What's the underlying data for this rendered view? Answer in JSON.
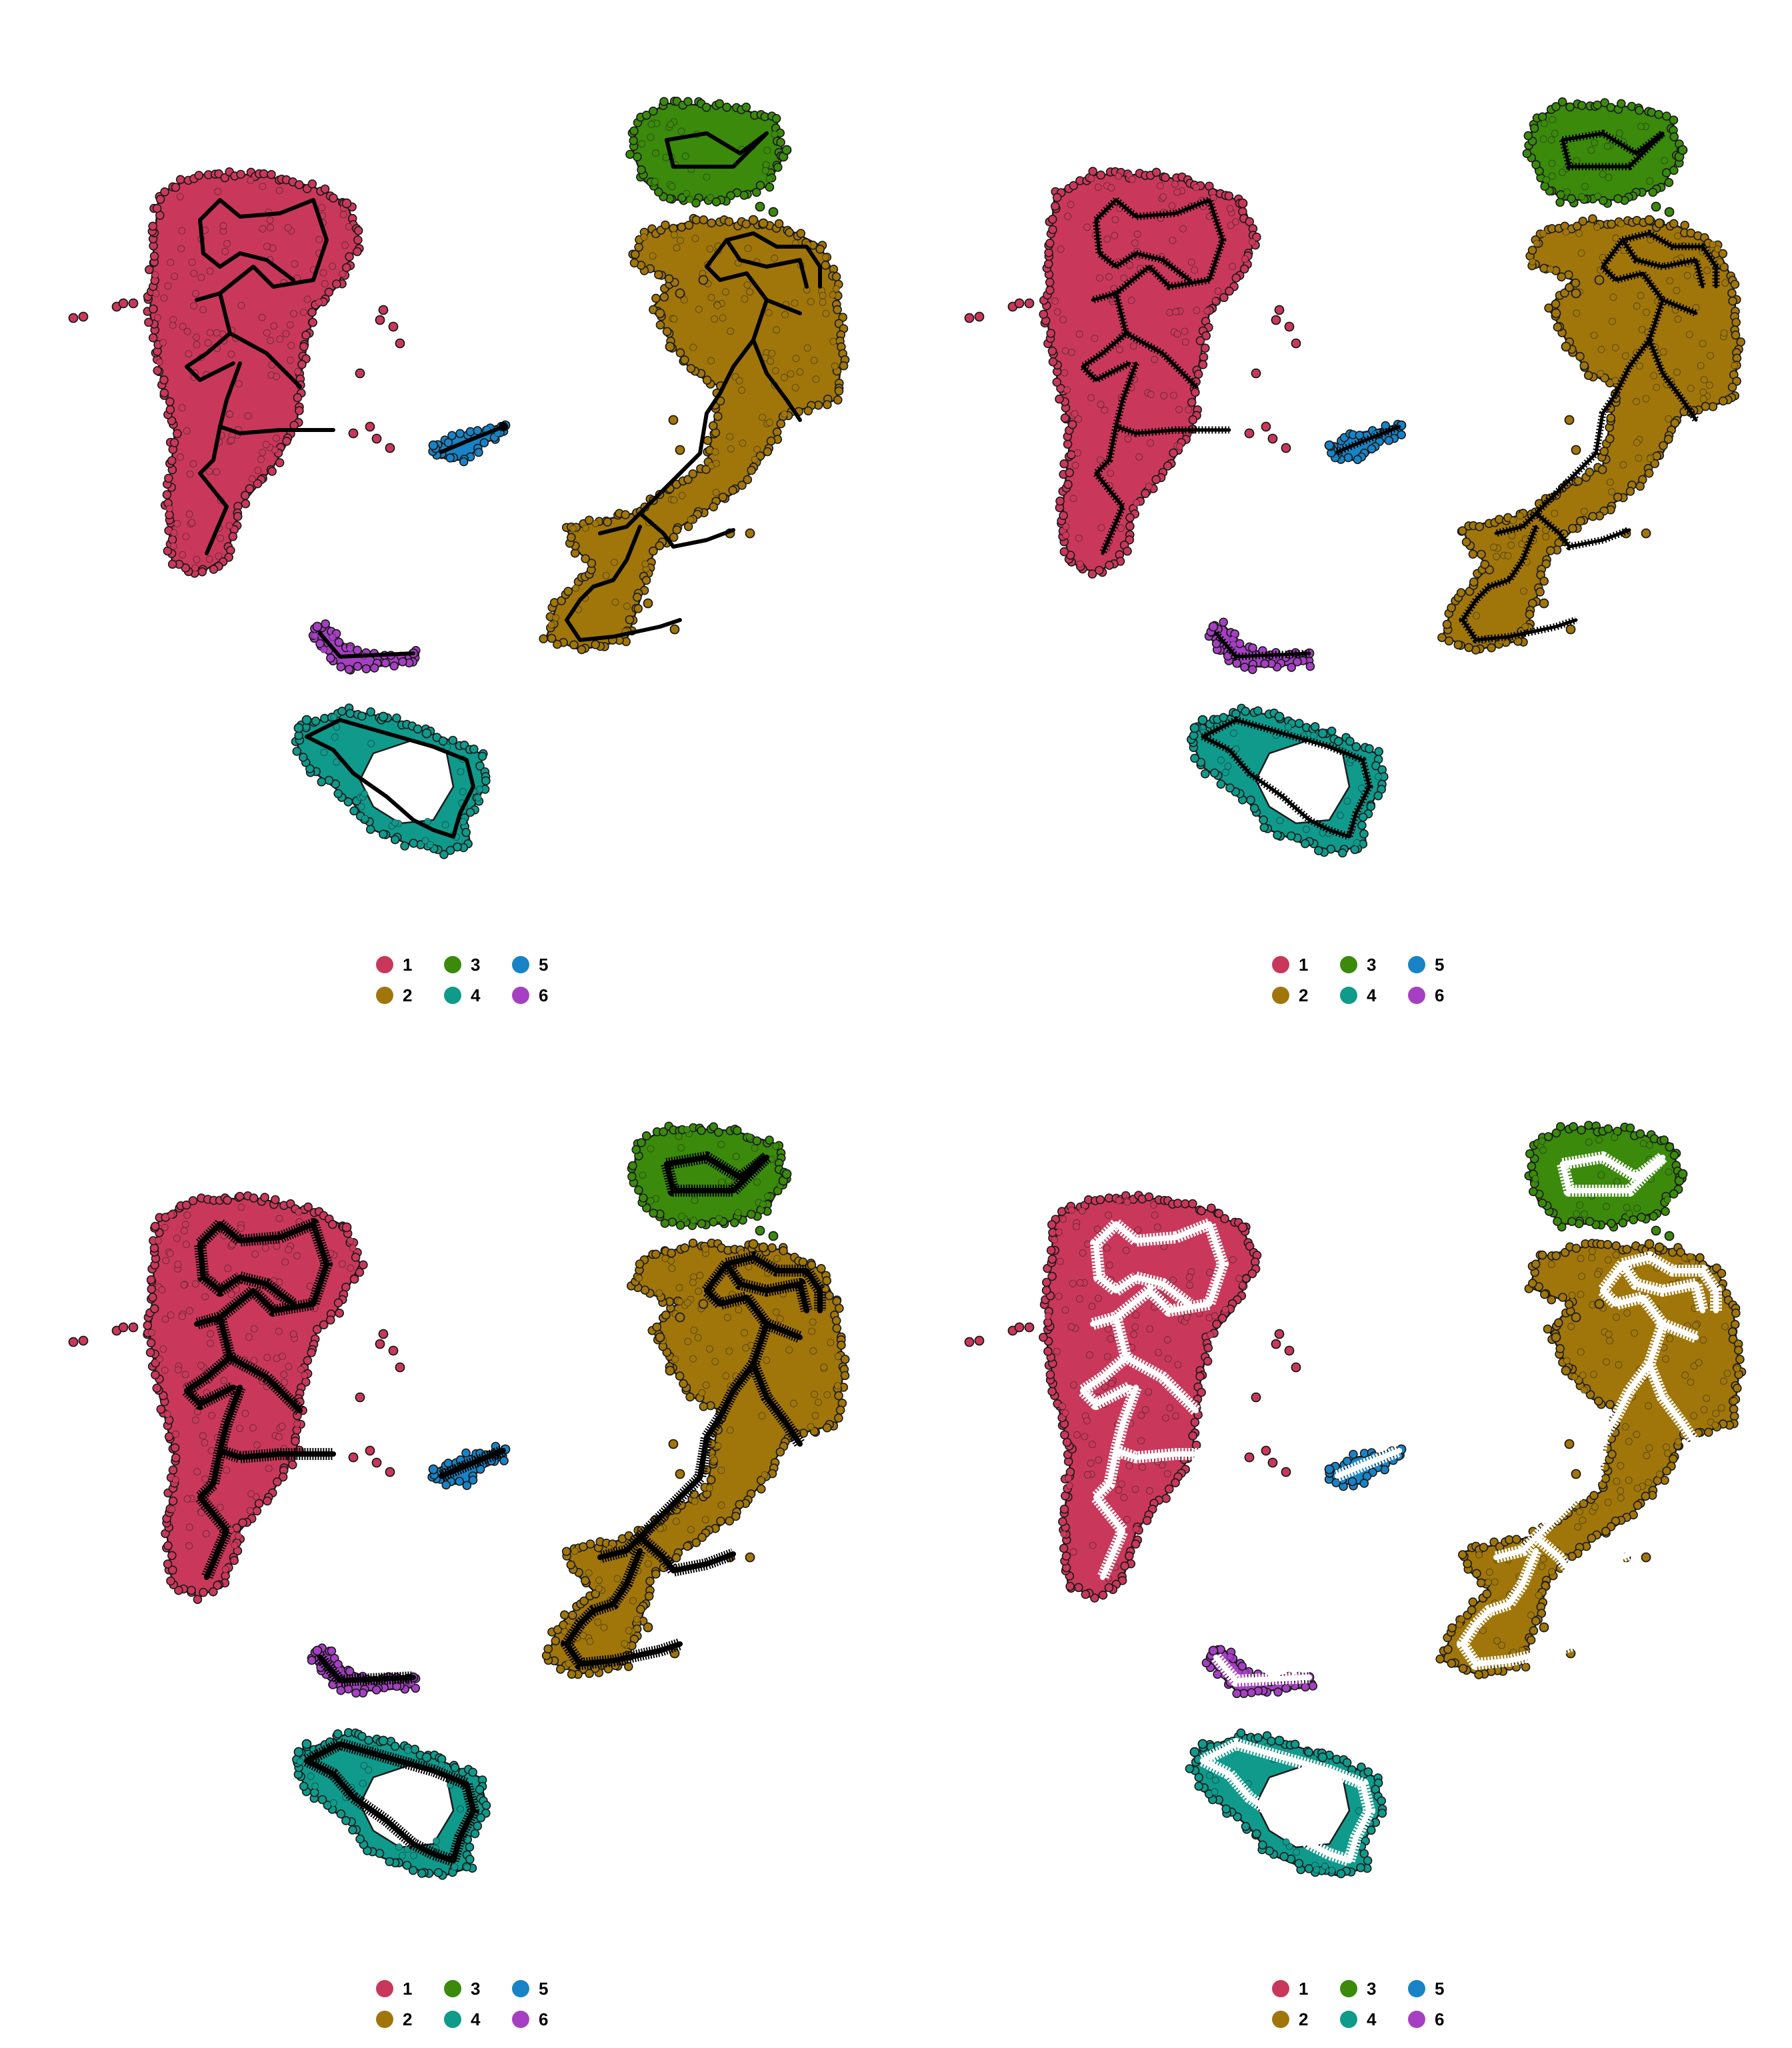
{
  "colors": {
    "1": "#c9385a",
    "2": "#a0760a",
    "3": "#3b8a0b",
    "4": "#0f9a8c",
    "5": "#1883c6",
    "6": "#a540c2",
    "outline": "#1a1a1a",
    "trajectory_dark": "#000000",
    "trajectory_light": "#ffffff"
  },
  "chart_data": [
    {
      "type": "scatter",
      "panel": "top-left",
      "legend": {
        "position": "bottom",
        "entries": [
          "1",
          "2",
          "3",
          "4",
          "5",
          "6"
        ]
      },
      "trajectory": {
        "color": "black",
        "style": "thin"
      },
      "axes": "hidden",
      "grid": false
    },
    {
      "type": "scatter",
      "panel": "top-right",
      "legend": {
        "position": "bottom",
        "entries": [
          "1",
          "2",
          "3",
          "4",
          "5",
          "6"
        ]
      },
      "trajectory": {
        "color": "black",
        "style": "medium"
      },
      "axes": "hidden",
      "grid": false
    },
    {
      "type": "scatter",
      "panel": "bottom-left",
      "legend": {
        "position": "bottom",
        "entries": [
          "1",
          "2",
          "3",
          "4",
          "5",
          "6"
        ]
      },
      "trajectory": {
        "color": "black",
        "style": "thick"
      },
      "axes": "hidden",
      "grid": false
    },
    {
      "type": "scatter",
      "panel": "bottom-right",
      "legend": {
        "position": "bottom",
        "entries": [
          "1",
          "2",
          "3",
          "4",
          "5",
          "6"
        ]
      },
      "trajectory": {
        "color": "white",
        "style": "thick"
      },
      "axes": "hidden",
      "grid": false
    }
  ]
}
